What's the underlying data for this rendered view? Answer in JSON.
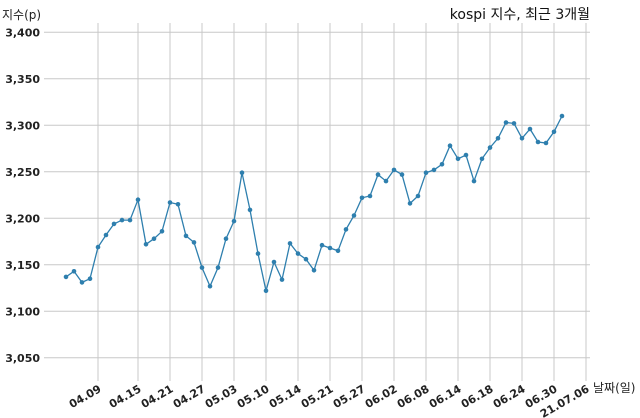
{
  "chart_data": {
    "type": "line",
    "title": "kospi 지수, 최근 3개월",
    "xlabel": "날짜(일)",
    "ylabel": "지수(p)",
    "ylim": [
      3025,
      3410
    ],
    "yticks": [
      3050,
      3100,
      3150,
      3200,
      3250,
      3300,
      3350,
      3400
    ],
    "ytick_labels": [
      "3,050",
      "3,100",
      "3,150",
      "3,200",
      "3,250",
      "3,300",
      "3,350",
      "3,400"
    ],
    "x_tick_labels": [
      "04.09",
      "04.15",
      "04.21",
      "04.27",
      "05.03",
      "05.10",
      "05.14",
      "05.21",
      "05.27",
      "06.02",
      "06.08",
      "06.14",
      "06.18",
      "06.24",
      "06.30",
      "21.07.06"
    ],
    "x_tick_positions": [
      4,
      9,
      13,
      17,
      21,
      25,
      29,
      33,
      37,
      41,
      45,
      49,
      53,
      57,
      61,
      65
    ],
    "grid": true,
    "line_color": "#2e7fae",
    "series": [
      {
        "values": [
          3137,
          3143,
          3131,
          3135,
          3169,
          3182,
          3194,
          3198,
          3198,
          3220,
          3172,
          3178,
          3186,
          3217,
          3215,
          3181,
          3174,
          3147,
          3127,
          3147,
          3178,
          3197,
          3249,
          3209,
          3162,
          3122,
          3153,
          3134,
          3173,
          3162,
          3156,
          3144,
          3171,
          3168,
          3165,
          3188,
          3203,
          3222,
          3224,
          3247,
          3240,
          3252,
          3247,
          3216,
          3224,
          3249,
          3252,
          3258,
          3278,
          3264,
          3268,
          3240,
          3264,
          3276,
          3286,
          3303,
          3302,
          3286,
          3296,
          3282,
          3281,
          3293,
          3310
        ]
      }
    ]
  }
}
